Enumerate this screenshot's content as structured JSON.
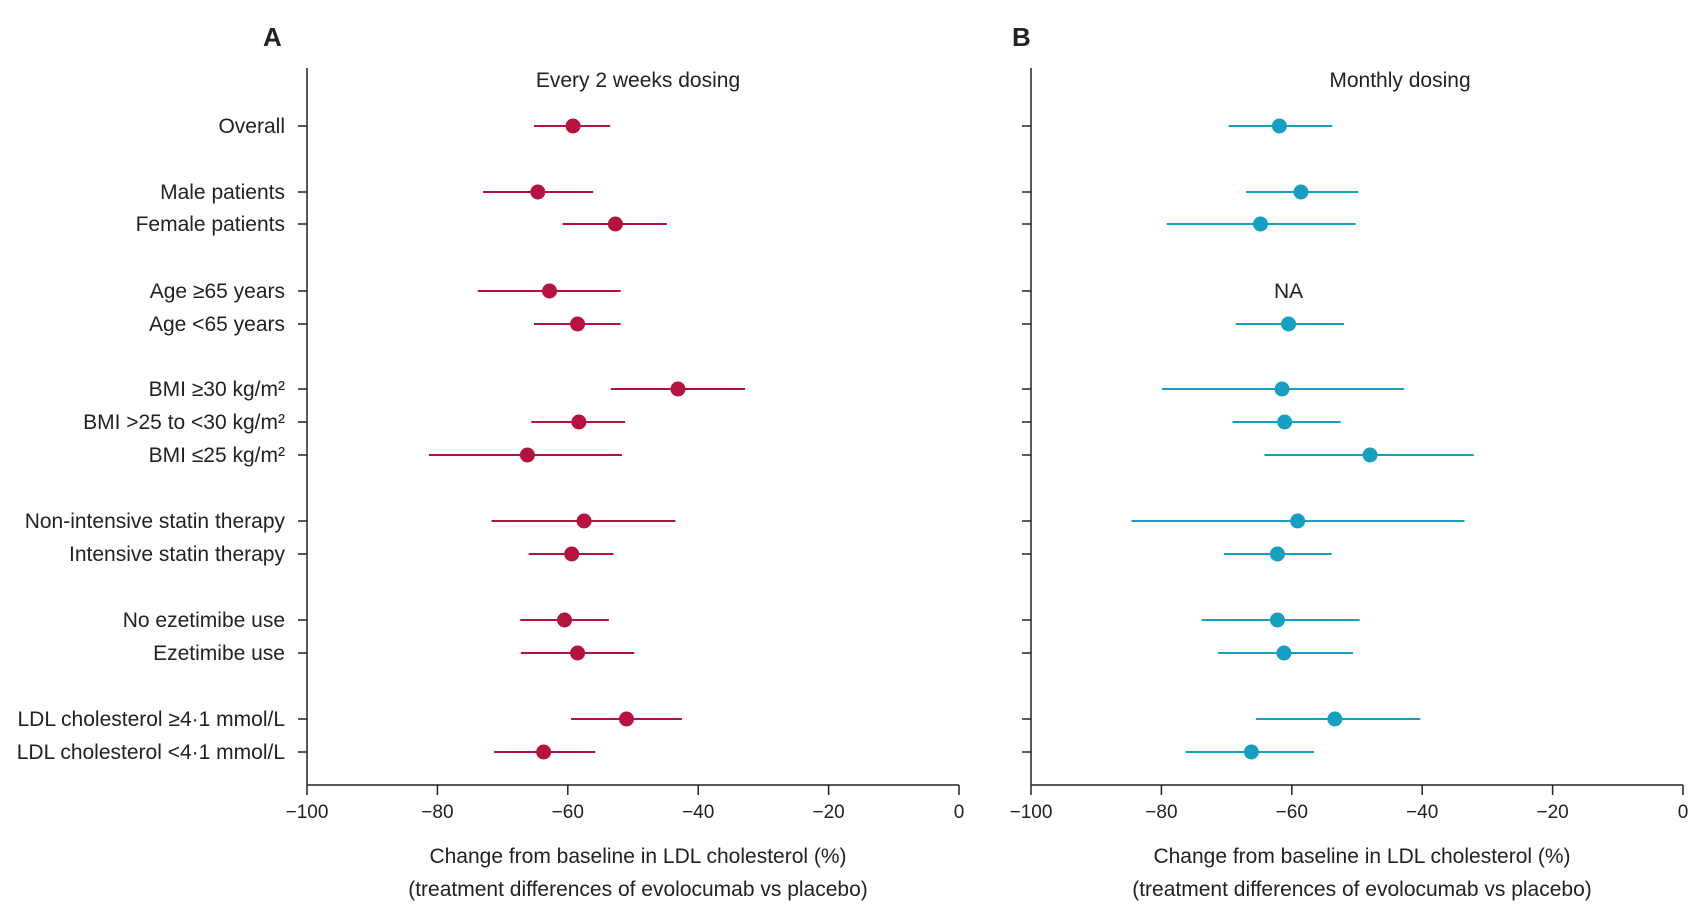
{
  "chart_data": [
    {
      "type": "forest",
      "panel_letter": "A",
      "title": "Every 2 weeks dosing",
      "xlabel_line1": "Change from baseline in LDL cholesterol (%)",
      "xlabel_line2": "(treatment differences of evolocumab vs placebo)",
      "xlim": [
        -100,
        0
      ],
      "xticks": [
        -100,
        -80,
        -60,
        -40,
        -20,
        0
      ],
      "xtick_labels": [
        "−100",
        "−80",
        "−60",
        "−40",
        "−20",
        "0"
      ],
      "color": "#B5123F",
      "rows": [
        {
          "label": "Overall",
          "value": -59.2,
          "low": -65.2,
          "high": -53.5
        },
        {
          "label": "Male patients",
          "value": -64.6,
          "low": -73.0,
          "high": -56.1
        },
        {
          "label": "Female patients",
          "value": -52.7,
          "low": -60.8,
          "high": -44.8
        },
        {
          "label": "Age ≥65 years",
          "value": -62.8,
          "low": -73.8,
          "high": -51.9
        },
        {
          "label": "Age <65 years",
          "value": -58.5,
          "low": -65.2,
          "high": -51.9
        },
        {
          "label": "BMI ≥30 kg/m²",
          "value": -43.1,
          "low": -53.4,
          "high": -32.8
        },
        {
          "label": "BMI >25 to <30 kg/m²",
          "value": -58.3,
          "low": -65.6,
          "high": -51.2
        },
        {
          "label": "BMI ≤25 kg/m²",
          "value": -66.2,
          "low": -81.3,
          "high": -51.7
        },
        {
          "label": "Non-intensive statin therapy",
          "value": -57.5,
          "low": -71.7,
          "high": -43.5
        },
        {
          "label": "Intensive statin therapy",
          "value": -59.4,
          "low": -66.0,
          "high": -53.0
        },
        {
          "label": "No ezetimibe use",
          "value": -60.5,
          "low": -67.3,
          "high": -53.7
        },
        {
          "label": "Ezetimibe use",
          "value": -58.5,
          "low": -67.2,
          "high": -49.8
        },
        {
          "label": "LDL cholesterol ≥4·1 mmol/L",
          "value": -51.0,
          "low": -59.5,
          "high": -42.5
        },
        {
          "label": "LDL cholesterol <4·1 mmol/L",
          "value": -63.7,
          "low": -71.3,
          "high": -55.8
        }
      ]
    },
    {
      "type": "forest",
      "panel_letter": "B",
      "title": "Monthly dosing",
      "xlabel_line1": "Change from baseline in LDL cholesterol (%)",
      "xlabel_line2": "(treatment differences of evolocumab vs placebo)",
      "xlim": [
        -100,
        0
      ],
      "xticks": [
        -100,
        -80,
        -60,
        -40,
        -20,
        0
      ],
      "xtick_labels": [
        "−100",
        "−80",
        "−60",
        "−40",
        "−20",
        "0"
      ],
      "color": "#159FC1",
      "na_text": "NA",
      "rows": [
        {
          "label": "Overall",
          "value": -61.9,
          "low": -69.7,
          "high": -53.8
        },
        {
          "label": "Male patients",
          "value": -58.6,
          "low": -67.0,
          "high": -49.8
        },
        {
          "label": "Female patients",
          "value": -64.8,
          "low": -79.2,
          "high": -50.2
        },
        {
          "label": "Age ≥65 years",
          "value": null,
          "low": null,
          "high": null
        },
        {
          "label": "Age <65 years",
          "value": -60.5,
          "low": -68.6,
          "high": -52.0
        },
        {
          "label": "BMI ≥30 kg/m²",
          "value": -61.5,
          "low": -79.9,
          "high": -42.8
        },
        {
          "label": "BMI >25 to <30 kg/m²",
          "value": -61.1,
          "low": -69.1,
          "high": -52.5
        },
        {
          "label": "BMI ≤25 kg/m²",
          "value": -48.0,
          "low": -64.2,
          "high": -32.1
        },
        {
          "label": "Non-intensive statin therapy",
          "value": -59.1,
          "low": -84.6,
          "high": -33.5
        },
        {
          "label": "Intensive statin therapy",
          "value": -62.2,
          "low": -70.4,
          "high": -53.9
        },
        {
          "label": "No ezetimibe use",
          "value": -62.2,
          "low": -73.8,
          "high": -49.6
        },
        {
          "label": "Ezetimibe use",
          "value": -61.2,
          "low": -71.3,
          "high": -50.6
        },
        {
          "label": "LDL cholesterol ≥4·1 mmol/L",
          "value": -53.4,
          "low": -65.5,
          "high": -40.3
        },
        {
          "label": "LDL cholesterol <4·1 mmol/L",
          "value": -66.2,
          "low": -76.3,
          "high": -56.6
        }
      ]
    }
  ]
}
